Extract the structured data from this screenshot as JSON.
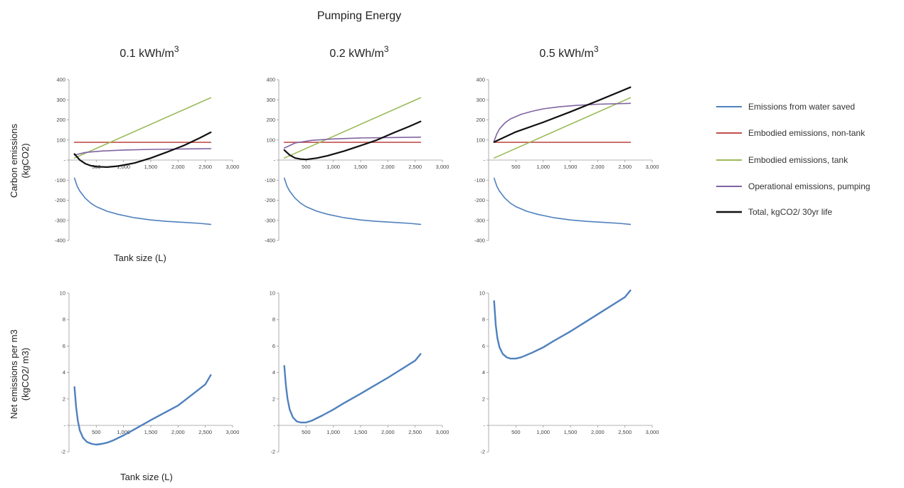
{
  "figure_title": "Pumping Energy",
  "column_titles": [
    {
      "base": "0.1 kWh/m",
      "sup": "3"
    },
    {
      "base": "0.2 kWh/m",
      "sup": "3"
    },
    {
      "base": "0.5 kWh/m",
      "sup": "3"
    }
  ],
  "row_labels": {
    "top": [
      "Carbon emissions",
      "(kgCO2)"
    ],
    "bottom": [
      "Net emissions per m3",
      "(kgCO2/ m3)"
    ]
  },
  "xlabel_top": "Tank size (L)",
  "xlabel_bottom": "Tank size (L)",
  "colors": {
    "water_saved": "#4f81bd",
    "non_tank": "#c0504d",
    "tank": "#9bbb59",
    "pumping": "#8064a2",
    "total": "#111111"
  },
  "legend": [
    {
      "key": "water_saved",
      "label": "Emissions from water saved"
    },
    {
      "key": "non_tank",
      "label": "Embodied emissions, non-tank"
    },
    {
      "key": "tank",
      "label": "Embodied emissions, tank"
    },
    {
      "key": "pumping",
      "label": "Operational emissions, pumping"
    },
    {
      "key": "total",
      "label": "Total, kgCO2/ 30yr life"
    }
  ],
  "chart_data": [
    {
      "type": "line",
      "row": "top",
      "column": "0.1 kWh/m3",
      "xlim": [
        0,
        3000
      ],
      "ylim": [
        -400,
        400
      ],
      "xticks": [
        500,
        1000,
        1500,
        2000,
        2500,
        3000
      ],
      "xtick_labels": [
        "500",
        "1,000",
        "1,500",
        "2,000",
        "2,500",
        "3,000"
      ],
      "yticks": [
        -400,
        -300,
        -200,
        -100,
        0,
        100,
        200,
        300,
        400
      ],
      "ytick_labels": [
        "-400",
        "-300",
        "-200",
        "-100",
        "-",
        "100",
        "200",
        "300",
        "400"
      ],
      "series": [
        {
          "key": "water_saved",
          "name": "Emissions from water saved",
          "x": [
            100,
            150,
            200,
            300,
            400,
            500,
            700,
            900,
            1200,
            1500,
            1800,
            2100,
            2400,
            2600
          ],
          "y": [
            -90,
            -130,
            -155,
            -190,
            -215,
            -232,
            -255,
            -270,
            -287,
            -298,
            -305,
            -310,
            -315,
            -320
          ]
        },
        {
          "key": "non_tank",
          "name": "Embodied emissions, non-tank",
          "x": [
            100,
            2600
          ],
          "y": [
            88,
            88
          ]
        },
        {
          "key": "tank",
          "name": "Embodied emissions, tank",
          "x": [
            100,
            2600
          ],
          "y": [
            10,
            310
          ]
        },
        {
          "key": "pumping",
          "name": "Operational emissions, pumping",
          "x": [
            100,
            300,
            600,
            1000,
            1500,
            2000,
            2600
          ],
          "y": [
            25,
            38,
            45,
            50,
            53,
            55,
            57
          ]
        },
        {
          "key": "total",
          "name": "Total, kgCO2/ 30yr life",
          "x": [
            100,
            200,
            300,
            400,
            500,
            700,
            900,
            1200,
            1500,
            1800,
            2100,
            2400,
            2600
          ],
          "y": [
            30,
            0,
            -18,
            -28,
            -33,
            -35,
            -30,
            -15,
            10,
            40,
            72,
            110,
            138
          ]
        }
      ]
    },
    {
      "type": "line",
      "row": "top",
      "column": "0.2 kWh/m3",
      "xlim": [
        0,
        3000
      ],
      "ylim": [
        -400,
        400
      ],
      "xticks": [
        500,
        1000,
        1500,
        2000,
        2500,
        3000
      ],
      "xtick_labels": [
        "500",
        "1,000",
        "1,500",
        "2,000",
        "2,500",
        "3,000"
      ],
      "yticks": [
        -400,
        -300,
        -200,
        -100,
        0,
        100,
        200,
        300,
        400
      ],
      "ytick_labels": [
        "-400",
        "-300",
        "-200",
        "-100",
        "-",
        "100",
        "200",
        "300",
        "400"
      ],
      "series": [
        {
          "key": "water_saved",
          "name": "Emissions from water saved",
          "x": [
            100,
            150,
            200,
            300,
            400,
            500,
            700,
            900,
            1200,
            1500,
            1800,
            2100,
            2400,
            2600
          ],
          "y": [
            -90,
            -130,
            -155,
            -190,
            -215,
            -232,
            -255,
            -270,
            -287,
            -298,
            -305,
            -310,
            -315,
            -320
          ]
        },
        {
          "key": "non_tank",
          "name": "Embodied emissions, non-tank",
          "x": [
            100,
            2600
          ],
          "y": [
            88,
            88
          ]
        },
        {
          "key": "tank",
          "name": "Embodied emissions, tank",
          "x": [
            100,
            2600
          ],
          "y": [
            10,
            310
          ]
        },
        {
          "key": "pumping",
          "name": "Operational emissions, pumping",
          "x": [
            100,
            300,
            600,
            1000,
            1500,
            2000,
            2600
          ],
          "y": [
            60,
            85,
            98,
            105,
            110,
            112,
            114
          ]
        },
        {
          "key": "total",
          "name": "Total, kgCO2/ 30yr life",
          "x": [
            100,
            200,
            300,
            400,
            500,
            700,
            900,
            1200,
            1500,
            1800,
            2100,
            2400,
            2600
          ],
          "y": [
            50,
            25,
            10,
            5,
            3,
            10,
            22,
            45,
            72,
            100,
            135,
            168,
            192
          ]
        }
      ]
    },
    {
      "type": "line",
      "row": "top",
      "column": "0.5 kWh/m3",
      "xlim": [
        0,
        3000
      ],
      "ylim": [
        -400,
        400
      ],
      "xticks": [
        500,
        1000,
        1500,
        2000,
        2500,
        3000
      ],
      "xtick_labels": [
        "500",
        "1,000",
        "1,500",
        "2,000",
        "2,500",
        "3,000"
      ],
      "yticks": [
        -400,
        -300,
        -200,
        -100,
        0,
        100,
        200,
        300,
        400
      ],
      "ytick_labels": [
        "-400",
        "-300",
        "-200",
        "-100",
        "-",
        "100",
        "200",
        "300",
        "400"
      ],
      "series": [
        {
          "key": "water_saved",
          "name": "Emissions from water saved",
          "x": [
            100,
            150,
            200,
            300,
            400,
            500,
            700,
            900,
            1200,
            1500,
            1800,
            2100,
            2400,
            2600
          ],
          "y": [
            -90,
            -130,
            -155,
            -190,
            -215,
            -232,
            -255,
            -270,
            -287,
            -298,
            -305,
            -310,
            -315,
            -320
          ]
        },
        {
          "key": "non_tank",
          "name": "Embodied emissions, non-tank",
          "x": [
            100,
            2600
          ],
          "y": [
            88,
            88
          ]
        },
        {
          "key": "tank",
          "name": "Embodied emissions, tank",
          "x": [
            100,
            2600
          ],
          "y": [
            10,
            310
          ]
        },
        {
          "key": "pumping",
          "name": "Operational emissions, pumping",
          "x": [
            100,
            150,
            200,
            300,
            400,
            600,
            800,
            1000,
            1300,
            1600,
            2000,
            2600
          ],
          "y": [
            95,
            130,
            155,
            185,
            205,
            228,
            243,
            255,
            265,
            272,
            278,
            282
          ]
        },
        {
          "key": "total",
          "name": "Total, kgCO2/ 30yr life",
          "x": [
            100,
            500,
            1000,
            1500,
            2000,
            2600
          ],
          "y": [
            90,
            140,
            188,
            240,
            295,
            362
          ]
        }
      ]
    },
    {
      "type": "line",
      "row": "bottom",
      "column": "0.1 kWh/m3",
      "xlim": [
        0,
        3000
      ],
      "ylim": [
        -2,
        10
      ],
      "xticks": [
        500,
        1000,
        1500,
        2000,
        2500,
        3000
      ],
      "xtick_labels": [
        "500",
        "1,000",
        "1,500",
        "2,000",
        "2,500",
        "3,000"
      ],
      "yticks": [
        -2,
        0,
        2,
        4,
        6,
        8,
        10
      ],
      "ytick_labels": [
        "-2",
        "-",
        "2",
        "4",
        "6",
        "8",
        "10"
      ],
      "series": [
        {
          "key": "water_saved",
          "x": [
            100,
            130,
            160,
            200,
            260,
            330,
            420,
            500,
            600,
            700,
            800,
            1000,
            1200,
            1500,
            2000,
            2500,
            2600
          ],
          "y": [
            2.9,
            1.4,
            0.4,
            -0.4,
            -0.95,
            -1.25,
            -1.4,
            -1.45,
            -1.4,
            -1.3,
            -1.15,
            -0.75,
            -0.3,
            0.4,
            1.5,
            3.1,
            3.8
          ]
        }
      ]
    },
    {
      "type": "line",
      "row": "bottom",
      "column": "0.2 kWh/m3",
      "xlim": [
        0,
        3000
      ],
      "ylim": [
        -2,
        10
      ],
      "xticks": [
        500,
        1000,
        1500,
        2000,
        2500,
        3000
      ],
      "xtick_labels": [
        "500",
        "1,000",
        "1,500",
        "2,000",
        "2,500",
        "3,000"
      ],
      "yticks": [
        -2,
        0,
        2,
        4,
        6,
        8,
        10
      ],
      "ytick_labels": [
        "-2",
        "-",
        "2",
        "4",
        "6",
        "8",
        "10"
      ],
      "series": [
        {
          "key": "water_saved",
          "x": [
            100,
            130,
            160,
            200,
            260,
            330,
            400,
            500,
            600,
            800,
            1000,
            1200,
            1500,
            2000,
            2500,
            2600
          ],
          "y": [
            4.5,
            3.0,
            2.0,
            1.2,
            0.6,
            0.3,
            0.22,
            0.22,
            0.35,
            0.75,
            1.2,
            1.7,
            2.4,
            3.6,
            4.9,
            5.4
          ]
        }
      ]
    },
    {
      "type": "line",
      "row": "bottom",
      "column": "0.5 kWh/m3",
      "xlim": [
        0,
        3000
      ],
      "ylim": [
        -2,
        10
      ],
      "xticks": [
        500,
        1000,
        1500,
        2000,
        2500,
        3000
      ],
      "xtick_labels": [
        "500",
        "1,000",
        "1,500",
        "2,000",
        "2,500",
        "3,000"
      ],
      "yticks": [
        -2,
        0,
        2,
        4,
        6,
        8,
        10
      ],
      "ytick_labels": [
        "-2",
        "-",
        "2",
        "4",
        "6",
        "8",
        "10"
      ],
      "series": [
        {
          "key": "water_saved",
          "x": [
            100,
            130,
            160,
            200,
            260,
            330,
            400,
            500,
            600,
            800,
            1000,
            1200,
            1500,
            2000,
            2500,
            2600
          ],
          "y": [
            9.4,
            7.6,
            6.6,
            5.9,
            5.4,
            5.15,
            5.05,
            5.05,
            5.15,
            5.5,
            5.9,
            6.4,
            7.1,
            8.4,
            9.7,
            10.2
          ]
        }
      ]
    }
  ]
}
